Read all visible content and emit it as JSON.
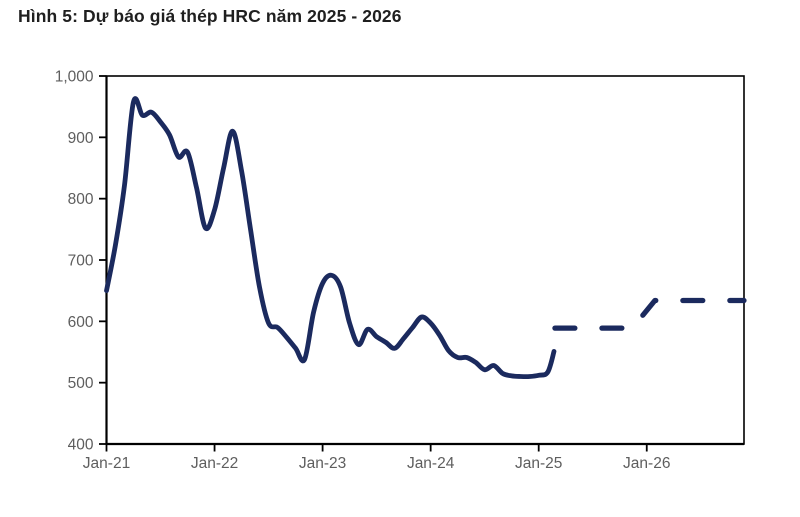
{
  "figure": {
    "title": "Hình 5: Dự báo giá thép HRC năm 2025 - 2026"
  },
  "colors": {
    "series_line": "#1B2A5E",
    "axis": "#000000",
    "tick_label": "#5E5E5E",
    "title_text": "#1F1F1F",
    "background": "#FFFFFF"
  },
  "chart_data": {
    "type": "line",
    "title": "Hình 5: Dự báo giá thép HRC năm 2025 - 2026",
    "xlabel": "",
    "ylabel": "",
    "ylim": [
      400,
      1000
    ],
    "y_ticks": [
      1000,
      900,
      800,
      700,
      600,
      500,
      400
    ],
    "y_tick_labels": [
      "1,000",
      "900",
      "800",
      "700",
      "600",
      "500",
      "400"
    ],
    "x_tick_labels": [
      "Jan-21",
      "Jan-22",
      "Jan-23",
      "Jan-24",
      "Jan-25",
      "Jan-26"
    ],
    "x_tick_months": [
      0,
      12,
      24,
      36,
      48,
      60
    ],
    "x_domain_months": [
      0,
      70.8
    ],
    "x_unit": "months since Jan-2021",
    "grid": false,
    "legend": "none",
    "series": [
      {
        "name": "historical_solid",
        "style": "solid",
        "smooth": true,
        "points": [
          [
            0,
            650
          ],
          [
            1,
            725
          ],
          [
            2,
            822
          ],
          [
            3,
            958
          ],
          [
            4,
            936
          ],
          [
            5,
            941
          ],
          [
            6,
            925
          ],
          [
            7,
            904
          ],
          [
            8,
            868
          ],
          [
            9,
            876
          ],
          [
            10,
            818
          ],
          [
            11,
            752
          ],
          [
            12,
            782
          ],
          [
            13,
            850
          ],
          [
            14,
            910
          ],
          [
            15,
            845
          ],
          [
            16,
            749
          ],
          [
            17,
            655
          ],
          [
            18,
            597
          ],
          [
            19,
            590
          ],
          [
            20,
            574
          ],
          [
            21,
            556
          ],
          [
            22,
            538
          ],
          [
            23,
            615
          ],
          [
            24,
            662
          ],
          [
            25,
            675
          ],
          [
            26,
            656
          ],
          [
            27,
            597
          ],
          [
            28,
            562
          ],
          [
            29,
            587
          ],
          [
            30,
            575
          ],
          [
            31,
            566
          ],
          [
            32,
            556
          ],
          [
            33,
            572
          ],
          [
            34,
            590
          ],
          [
            35,
            607
          ],
          [
            36,
            597
          ],
          [
            37,
            577
          ],
          [
            38,
            552
          ],
          [
            39,
            541
          ],
          [
            40,
            541
          ],
          [
            41,
            533
          ],
          [
            42,
            521
          ],
          [
            43,
            528
          ],
          [
            44,
            515
          ],
          [
            45,
            511
          ],
          [
            46,
            510
          ],
          [
            47,
            510
          ],
          [
            48,
            512
          ],
          [
            49,
            517
          ],
          [
            49.7,
            551
          ]
        ]
      },
      {
        "name": "forecast_dashed",
        "style": "dashed",
        "smooth": false,
        "points": [
          [
            49.8,
            589
          ],
          [
            58.4,
            589
          ],
          [
            60.9,
            634
          ],
          [
            70.8,
            634
          ]
        ]
      }
    ]
  }
}
